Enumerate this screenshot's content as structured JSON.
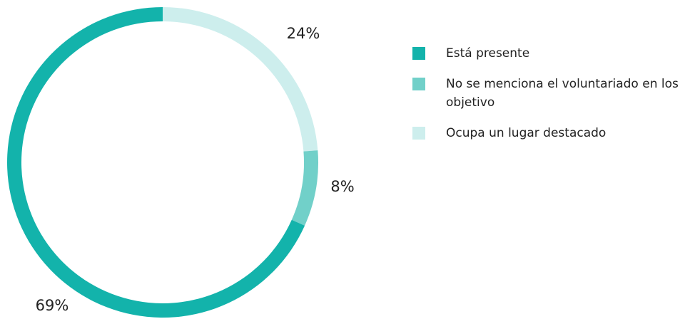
{
  "chart_data": {
    "type": "donut",
    "categories": [
      "Está presente",
      "No se menciona el voluntariado en los objetivo",
      "Ocupa un lugar destacado"
    ],
    "values": [
      69,
      8,
      24
    ],
    "value_labels": [
      "69%",
      "8%",
      "24%"
    ],
    "colors": [
      "#13b3ab",
      "#71d0c9",
      "#cdeeed"
    ],
    "legend": "right"
  }
}
